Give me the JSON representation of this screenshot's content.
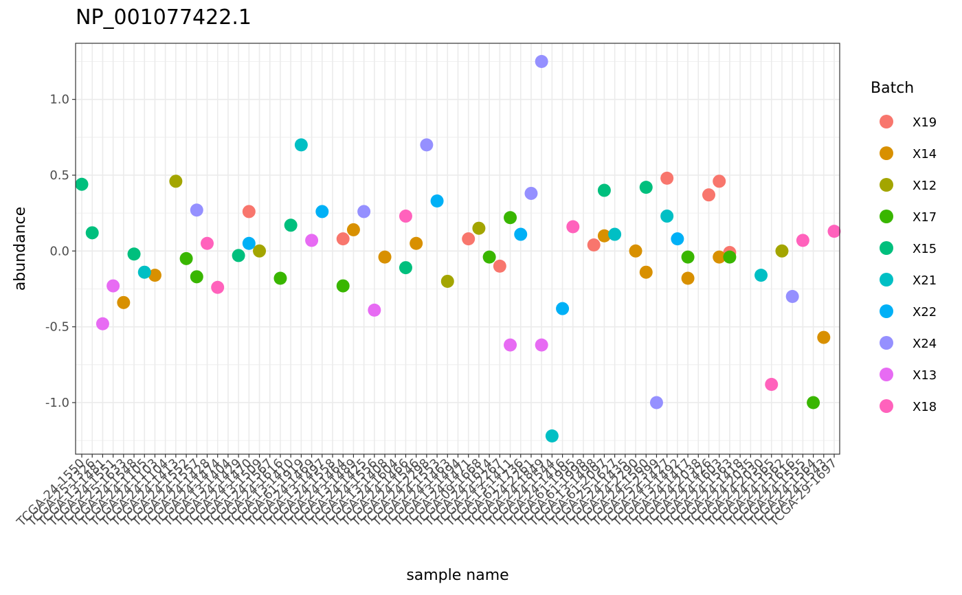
{
  "chart_data": {
    "type": "scatter",
    "title": "NP_001077422.1",
    "xlabel": "sample name",
    "ylabel": "abundance",
    "ylim": [
      -1.34,
      1.37
    ],
    "yticks": [
      "-1.0",
      "-0.5",
      "0.0",
      "0.5",
      "1.0"
    ],
    "ytick_values": [
      -1.0,
      -0.5,
      0.0,
      0.5,
      1.0
    ],
    "grid": true,
    "legend": {
      "title": "Batch",
      "position": "right",
      "entries": [
        {
          "name": "X19",
          "color": "#F8766D"
        },
        {
          "name": "X14",
          "color": "#D89000"
        },
        {
          "name": "X12",
          "color": "#A3A500"
        },
        {
          "name": "X17",
          "color": "#39B600"
        },
        {
          "name": "X15",
          "color": "#00BF7D"
        },
        {
          "name": "X21",
          "color": "#00BFC4"
        },
        {
          "name": "X22",
          "color": "#00B0F6"
        },
        {
          "name": "X24",
          "color": "#9590FF"
        },
        {
          "name": "X13",
          "color": "#E76BF3"
        },
        {
          "name": "X18",
          "color": "#FF62BC"
        }
      ]
    },
    "xtick_labels": [
      "TCGA-24-1550",
      "TCGA-25-1326",
      "TCGA-13-1481",
      "TCGA-24-1551",
      "TCGA-25-1633",
      "TCGA-24-1548",
      "TCGA-24-1105",
      "TCGA-24-1103",
      "TCGA-24-1104",
      "TCGA-24-1413",
      "TCGA-24-1552",
      "TCGA-24-1557",
      "TCGA-24-1428",
      "TCGA-24-1474",
      "TCGA-13-1404",
      "TCGA-24-1429",
      "TCGA-24-1470",
      "TCGA-13-1509",
      "TCGA-24-1567",
      "TCGA-24-1616",
      "TCGA-13-1410",
      "TCGA-61-1919",
      "TCGA-24-1469",
      "TCGA-13-1497",
      "TCGA-24-1558",
      "TCGA-24-1464",
      "TCGA-13-1489",
      "TCGA-24-1425",
      "TCGA-24-1556",
      "TCGA-13-1408",
      "TCGA-24-1604",
      "TCGA-24-1466",
      "TCGA-24-1546",
      "TCGA-24-2298",
      "TCGA-24-1553",
      "TCGA-24-1463",
      "TCGA-13-1494",
      "TCGA-24-1471",
      "TCGA-09-1668",
      "TCGA-24-1614",
      "TCGA-24-2267",
      "TCGA-13-1411",
      "TCGA-61-1736",
      "TCGA-24-2261",
      "TCGA-24-1849",
      "TCGA-24-1544",
      "TCGA-24-1416",
      "TCGA-61-1995",
      "TCGA-61-1998",
      "TCGA-13-1498",
      "TCGA-61-2097",
      "TCGA-25-1627",
      "TCGA-24-1435",
      "TCGA-24-2290",
      "TCGA-24-1560",
      "TCGA-25-2399",
      "TCGA-24-1427",
      "TCGA-13-1492",
      "TCGA-24-1417",
      "TCGA-24-2038",
      "TCGA-24-1426",
      "TCGA-24-1603",
      "TCGA-24-1563",
      "TCGA-24-1418",
      "TCGA-24-2035",
      "TCGA-24-2030",
      "TCGA-24-1565",
      "TCGA-24-1562",
      "TCGA-24-1616",
      "TCGA-24-1555",
      "TCGA-24-1564",
      "TCGA-24-1543",
      "TCGA-29-1697"
    ],
    "series": [
      {
        "name": "X19",
        "x": [
          16,
          25,
          37,
          40,
          49,
          56,
          60,
          61,
          62
        ],
        "y": [
          0.26,
          0.08,
          0.08,
          -0.1,
          0.04,
          0.48,
          0.37,
          0.46,
          -0.01
        ]
      },
      {
        "name": "X14",
        "x": [
          4,
          7,
          26,
          29,
          32,
          50,
          53,
          54,
          58,
          61,
          71
        ],
        "y": [
          -0.34,
          -0.16,
          0.14,
          -0.04,
          0.05,
          0.1,
          0.0,
          -0.14,
          -0.18,
          -0.04,
          -0.57
        ]
      },
      {
        "name": "X12",
        "x": [
          9,
          17,
          35,
          38,
          67
        ],
        "y": [
          0.46,
          0.0,
          -0.2,
          0.15,
          0.0
        ]
      },
      {
        "name": "X17",
        "x": [
          10,
          11,
          19,
          25,
          39,
          41,
          58,
          62,
          70
        ],
        "y": [
          -0.05,
          -0.17,
          -0.18,
          -0.23,
          -0.04,
          0.22,
          -0.04,
          -0.04,
          -1.0
        ]
      },
      {
        "name": "X15",
        "x": [
          0,
          1,
          5,
          15,
          20,
          31,
          50,
          54
        ],
        "y": [
          0.44,
          0.12,
          -0.02,
          -0.03,
          0.17,
          -0.11,
          0.4,
          0.42
        ]
      },
      {
        "name": "X21",
        "x": [
          6,
          21,
          45,
          51,
          56,
          65
        ],
        "y": [
          -0.14,
          0.7,
          -1.22,
          0.11,
          0.23,
          -0.16
        ]
      },
      {
        "name": "X22",
        "x": [
          16,
          23,
          34,
          42,
          46,
          57
        ],
        "y": [
          0.05,
          0.26,
          0.33,
          0.11,
          -0.38,
          0.08
        ]
      },
      {
        "name": "X24",
        "x": [
          11,
          27,
          33,
          44,
          43,
          55,
          68
        ],
        "y": [
          0.27,
          0.26,
          0.7,
          1.25,
          0.38,
          -1.0,
          -0.3
        ]
      },
      {
        "name": "X13",
        "x": [
          2,
          3,
          22,
          28,
          41,
          44
        ],
        "y": [
          -0.48,
          -0.23,
          0.07,
          -0.39,
          -0.62,
          -0.62
        ]
      },
      {
        "name": "X18",
        "x": [
          12,
          13,
          31,
          47,
          66,
          69,
          72
        ],
        "y": [
          0.05,
          -0.24,
          0.23,
          0.16,
          -0.88,
          0.07,
          0.13
        ]
      }
    ]
  }
}
